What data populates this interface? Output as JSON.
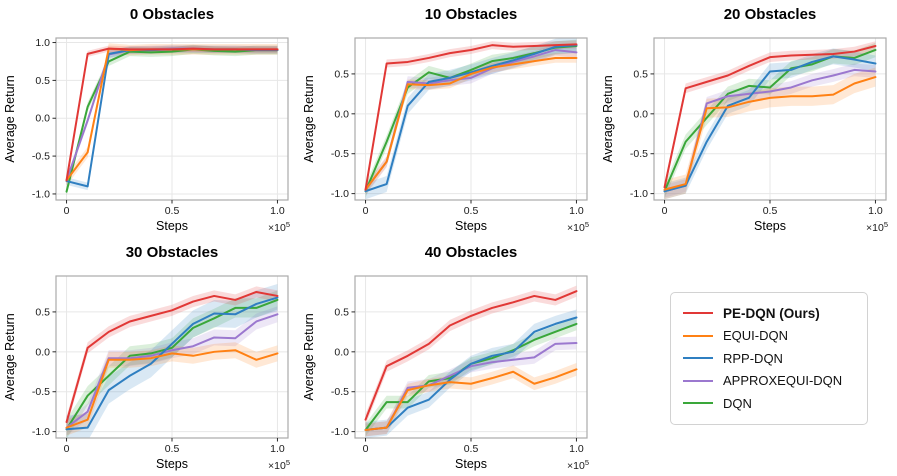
{
  "figure": {
    "ylabel": "Average Return",
    "xlabel": "Steps",
    "offset_text": "×10^5",
    "grid_color": "#e7e7e7",
    "spine_color": "#ababab",
    "legend": {
      "position": "bottom-right",
      "entries": [
        {
          "label": "PE-DQN (Ours)",
          "color": "#e13836",
          "bold": true
        },
        {
          "label": "EQUI-DQN",
          "color": "#ff8114",
          "bold": false
        },
        {
          "label": "RPP-DQN",
          "color": "#2f7fc1",
          "bold": false
        },
        {
          "label": "APPROXEQUI-DQN",
          "color": "#9b78cf",
          "bold": false
        },
        {
          "label": "DQN",
          "color": "#3aa73a",
          "bold": false
        }
      ]
    }
  },
  "chart_data": [
    {
      "type": "line",
      "title": "0 Obstacles",
      "xlabel": "Steps",
      "ylabel": "Average Return",
      "x": [
        0,
        0.1,
        0.2,
        0.3,
        0.4,
        0.5,
        0.6,
        0.7,
        0.8,
        0.9,
        1.0
      ],
      "x_units": "steps ×10^5",
      "xlim": [
        -0.05,
        1.05
      ],
      "ylim": [
        -1.08,
        1.06
      ],
      "x_ticks": [
        0,
        0.5,
        1.0
      ],
      "x_tick_labels": [
        "0",
        "0.5",
        "1.0"
      ],
      "y_ticks": [
        1.0,
        0.5,
        0.0,
        -0.5,
        -1.0
      ],
      "y_tick_labels": [
        "1.0",
        "0.5",
        "0.0",
        "-0.5",
        "-1.0"
      ],
      "grid": true,
      "series": [
        {
          "name": "PE-DQN (Ours)",
          "color": "#e13836",
          "band": 0.04,
          "values": [
            -0.82,
            0.85,
            0.92,
            0.91,
            0.91,
            0.91,
            0.92,
            0.91,
            0.91,
            0.91,
            0.91
          ]
        },
        {
          "name": "EQUI-DQN",
          "color": "#ff8114",
          "band": 0.07,
          "values": [
            -0.82,
            -0.45,
            0.92,
            0.9,
            0.91,
            0.91,
            0.91,
            0.91,
            0.91,
            0.91,
            0.91
          ]
        },
        {
          "name": "RPP-DQN",
          "color": "#2f7fc1",
          "band": 0.05,
          "values": [
            -0.83,
            -0.9,
            0.85,
            0.9,
            0.9,
            0.91,
            0.91,
            0.91,
            0.91,
            0.9,
            0.9
          ]
        },
        {
          "name": "APPROXEQUI-DQN",
          "color": "#9b78cf",
          "band": 0.05,
          "values": [
            -0.82,
            -0.03,
            0.84,
            0.9,
            0.91,
            0.92,
            0.92,
            0.91,
            0.91,
            0.91,
            0.91
          ]
        },
        {
          "name": "DQN",
          "color": "#3aa73a",
          "band": 0.06,
          "values": [
            -0.97,
            0.15,
            0.75,
            0.88,
            0.87,
            0.88,
            0.91,
            0.89,
            0.88,
            0.9,
            0.9
          ]
        }
      ]
    },
    {
      "type": "line",
      "title": "10 Obstacles",
      "xlabel": "Steps",
      "ylabel": "Average Return",
      "x": [
        0,
        0.1,
        0.2,
        0.3,
        0.4,
        0.5,
        0.6,
        0.7,
        0.8,
        0.9,
        1.0
      ],
      "x_units": "steps ×10^5",
      "xlim": [
        -0.05,
        1.05
      ],
      "ylim": [
        -1.08,
        0.95
      ],
      "x_ticks": [
        0,
        0.5,
        1.0
      ],
      "x_tick_labels": [
        "0",
        "0.5",
        "1.0"
      ],
      "y_ticks": [
        0.5,
        0.0,
        -0.5,
        -1.0
      ],
      "y_tick_labels": [
        "0.5",
        "0.0",
        "-0.5",
        "-1.0"
      ],
      "grid": true,
      "series": [
        {
          "name": "PE-DQN (Ours)",
          "color": "#e13836",
          "band": 0.05,
          "values": [
            -0.95,
            0.63,
            0.65,
            0.7,
            0.76,
            0.8,
            0.86,
            0.84,
            0.85,
            0.86,
            0.87
          ]
        },
        {
          "name": "EQUI-DQN",
          "color": "#ff8114",
          "band": 0.06,
          "values": [
            -0.95,
            -0.6,
            0.37,
            0.36,
            0.38,
            0.5,
            0.58,
            0.62,
            0.66,
            0.7,
            0.7
          ]
        },
        {
          "name": "RPP-DQN",
          "color": "#2f7fc1",
          "band": 0.1,
          "values": [
            -0.97,
            -0.88,
            0.1,
            0.4,
            0.45,
            0.52,
            0.6,
            0.67,
            0.75,
            0.84,
            0.86
          ]
        },
        {
          "name": "APPROXEQUI-DQN",
          "color": "#9b78cf",
          "band": 0.07,
          "values": [
            -0.95,
            -0.6,
            0.4,
            0.38,
            0.42,
            0.45,
            0.57,
            0.65,
            0.72,
            0.8,
            0.77
          ]
        },
        {
          "name": "DQN",
          "color": "#3aa73a",
          "band": 0.08,
          "values": [
            -0.97,
            -0.35,
            0.33,
            0.52,
            0.45,
            0.55,
            0.66,
            0.7,
            0.76,
            0.83,
            0.85
          ]
        }
      ]
    },
    {
      "type": "line",
      "title": "20 Obstacles",
      "xlabel": "Steps",
      "ylabel": "Average Return",
      "x": [
        0,
        0.1,
        0.2,
        0.3,
        0.4,
        0.5,
        0.6,
        0.7,
        0.8,
        0.9,
        1.0
      ],
      "x_units": "steps ×10^5",
      "xlim": [
        -0.05,
        1.05
      ],
      "ylim": [
        -1.08,
        0.95
      ],
      "x_ticks": [
        0,
        0.5,
        1.0
      ],
      "x_tick_labels": [
        "0",
        "0.5",
        "1.0"
      ],
      "y_ticks": [
        0.5,
        0.0,
        -0.5,
        -1.0
      ],
      "y_tick_labels": [
        "0.5",
        "0.0",
        "-0.5",
        "-1.0"
      ],
      "grid": true,
      "series": [
        {
          "name": "PE-DQN (Ours)",
          "color": "#e13836",
          "band": 0.06,
          "values": [
            -0.92,
            0.32,
            0.4,
            0.48,
            0.6,
            0.71,
            0.73,
            0.74,
            0.75,
            0.78,
            0.85
          ]
        },
        {
          "name": "EQUI-DQN",
          "color": "#ff8114",
          "band": 0.12,
          "values": [
            -0.95,
            -0.88,
            0.07,
            0.08,
            0.15,
            0.2,
            0.22,
            0.22,
            0.24,
            0.38,
            0.46
          ]
        },
        {
          "name": "RPP-DQN",
          "color": "#2f7fc1",
          "band": 0.1,
          "values": [
            -0.97,
            -0.9,
            -0.35,
            0.1,
            0.2,
            0.53,
            0.55,
            0.65,
            0.72,
            0.68,
            0.63
          ]
        },
        {
          "name": "APPROXEQUI-DQN",
          "color": "#9b78cf",
          "band": 0.08,
          "values": [
            -0.97,
            -0.9,
            0.13,
            0.22,
            0.25,
            0.28,
            0.33,
            0.42,
            0.48,
            0.55,
            0.53
          ]
        },
        {
          "name": "DQN",
          "color": "#3aa73a",
          "band": 0.09,
          "values": [
            -0.97,
            -0.35,
            -0.05,
            0.25,
            0.35,
            0.33,
            0.57,
            0.62,
            0.72,
            0.7,
            0.8
          ]
        }
      ]
    },
    {
      "type": "line",
      "title": "30 Obstacles",
      "xlabel": "Steps",
      "ylabel": "Average Return",
      "x": [
        0,
        0.1,
        0.2,
        0.3,
        0.4,
        0.5,
        0.6,
        0.7,
        0.8,
        0.9,
        1.0
      ],
      "x_units": "steps ×10^5",
      "xlim": [
        -0.05,
        1.05
      ],
      "ylim": [
        -1.08,
        0.95
      ],
      "x_ticks": [
        0,
        0.5,
        1.0
      ],
      "x_tick_labels": [
        "0",
        "0.5",
        "1.0"
      ],
      "y_ticks": [
        0.5,
        0.0,
        -0.5,
        -1.0
      ],
      "y_tick_labels": [
        "0.5",
        "0.0",
        "-0.5",
        "-1.0"
      ],
      "grid": true,
      "series": [
        {
          "name": "PE-DQN (Ours)",
          "color": "#e13836",
          "band": 0.07,
          "values": [
            -0.88,
            0.05,
            0.25,
            0.38,
            0.45,
            0.52,
            0.63,
            0.7,
            0.65,
            0.75,
            0.7
          ]
        },
        {
          "name": "EQUI-DQN",
          "color": "#ff8114",
          "band": 0.1,
          "values": [
            -0.95,
            -0.85,
            -0.1,
            -0.1,
            -0.08,
            -0.02,
            -0.05,
            0.0,
            0.02,
            -0.1,
            -0.02
          ]
        },
        {
          "name": "RPP-DQN",
          "color": "#2f7fc1",
          "band": 0.17,
          "values": [
            -0.97,
            -0.95,
            -0.48,
            -0.3,
            -0.15,
            0.1,
            0.35,
            0.48,
            0.47,
            0.6,
            0.68
          ]
        },
        {
          "name": "APPROXEQUI-DQN",
          "color": "#9b78cf",
          "band": 0.1,
          "values": [
            -0.95,
            -0.75,
            -0.08,
            -0.08,
            -0.05,
            0.02,
            0.07,
            0.18,
            0.17,
            0.38,
            0.47
          ]
        },
        {
          "name": "DQN",
          "color": "#3aa73a",
          "band": 0.12,
          "values": [
            -0.97,
            -0.55,
            -0.3,
            -0.05,
            -0.02,
            0.05,
            0.3,
            0.42,
            0.55,
            0.55,
            0.65
          ]
        }
      ]
    },
    {
      "type": "line",
      "title": "40 Obstacles",
      "xlabel": "Steps",
      "ylabel": "Average Return",
      "x": [
        0,
        0.1,
        0.2,
        0.3,
        0.4,
        0.5,
        0.6,
        0.7,
        0.8,
        0.9,
        1.0
      ],
      "x_units": "steps ×10^5",
      "xlim": [
        -0.05,
        1.05
      ],
      "ylim": [
        -1.08,
        0.95
      ],
      "x_ticks": [
        0,
        0.5,
        1.0
      ],
      "x_tick_labels": [
        "0",
        "0.5",
        "1.0"
      ],
      "y_ticks": [
        0.5,
        0.0,
        -0.5,
        -1.0
      ],
      "y_tick_labels": [
        "0.5",
        "0.0",
        "-0.5",
        "-1.0"
      ],
      "grid": true,
      "series": [
        {
          "name": "PE-DQN (Ours)",
          "color": "#e13836",
          "band": 0.07,
          "values": [
            -0.85,
            -0.18,
            -0.05,
            0.1,
            0.33,
            0.45,
            0.55,
            0.62,
            0.7,
            0.65,
            0.76
          ]
        },
        {
          "name": "EQUI-DQN",
          "color": "#ff8114",
          "band": 0.08,
          "values": [
            -0.98,
            -0.95,
            -0.48,
            -0.42,
            -0.38,
            -0.4,
            -0.33,
            -0.25,
            -0.4,
            -0.32,
            -0.22
          ]
        },
        {
          "name": "RPP-DQN",
          "color": "#2f7fc1",
          "band": 0.1,
          "values": [
            -0.98,
            -0.95,
            -0.7,
            -0.6,
            -0.35,
            -0.15,
            -0.05,
            0.0,
            0.25,
            0.35,
            0.43
          ]
        },
        {
          "name": "APPROXEQUI-DQN",
          "color": "#9b78cf",
          "band": 0.08,
          "values": [
            -0.98,
            -0.95,
            -0.45,
            -0.42,
            -0.3,
            -0.18,
            -0.13,
            -0.1,
            -0.07,
            0.1,
            0.11
          ]
        },
        {
          "name": "DQN",
          "color": "#3aa73a",
          "band": 0.08,
          "values": [
            -0.98,
            -0.63,
            -0.63,
            -0.37,
            -0.33,
            -0.15,
            -0.08,
            0.02,
            0.15,
            0.25,
            0.35
          ]
        }
      ]
    }
  ]
}
